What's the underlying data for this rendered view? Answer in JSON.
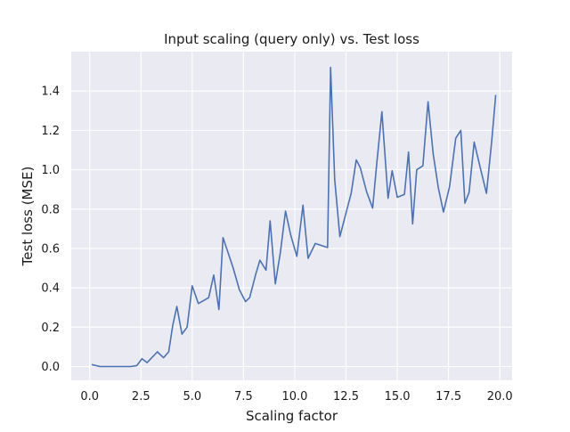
{
  "chart_data": {
    "type": "line",
    "title": "Input scaling (query only) vs. Test loss",
    "xlabel": "Scaling factor",
    "ylabel": "Test loss (MSE)",
    "xlim": [
      -0.9,
      20.6
    ],
    "ylim": [
      -0.07,
      1.6
    ],
    "xticks": [
      0.0,
      2.5,
      5.0,
      7.5,
      10.0,
      12.5,
      15.0,
      17.5,
      20.0
    ],
    "xtick_labels": [
      "0.0",
      "2.5",
      "5.0",
      "7.5",
      "10.0",
      "12.5",
      "15.0",
      "17.5",
      "20.0"
    ],
    "yticks": [
      0.0,
      0.2,
      0.4,
      0.6,
      0.8,
      1.0,
      1.2,
      1.4
    ],
    "ytick_labels": [
      "0.0",
      "0.2",
      "0.4",
      "0.6",
      "0.8",
      "1.0",
      "1.2",
      "1.4"
    ],
    "grid": true,
    "colors": {
      "background": "#eaeaf2",
      "grid": "#ffffff",
      "line": "#4c72b0"
    },
    "series": [
      {
        "x": [
          0.1,
          0.5,
          1.0,
          1.5,
          2.0,
          2.3,
          2.55,
          2.8,
          3.3,
          3.6,
          3.85,
          4.05,
          4.25,
          4.5,
          4.75,
          5.0,
          5.3,
          5.8,
          6.05,
          6.3,
          6.5,
          7.0,
          7.3,
          7.6,
          7.8,
          8.1,
          8.3,
          8.6,
          8.8,
          9.05,
          9.3,
          9.55,
          9.8,
          10.1,
          10.4,
          10.65,
          11.0,
          11.6,
          11.75,
          11.95,
          12.2,
          12.5,
          12.75,
          13.0,
          13.2,
          13.5,
          13.8,
          14.0,
          14.25,
          14.55,
          14.75,
          15.0,
          15.35,
          15.55,
          15.75,
          15.95,
          16.25,
          16.5,
          16.75,
          17.0,
          17.25,
          17.55,
          17.85,
          18.1,
          18.3,
          18.5,
          18.75,
          19.0,
          19.35,
          19.6,
          19.8
        ],
        "y": [
          0.01,
          0.0,
          0.0,
          0.0,
          0.0,
          0.005,
          0.04,
          0.02,
          0.075,
          0.045,
          0.075,
          0.21,
          0.305,
          0.165,
          0.2,
          0.41,
          0.32,
          0.35,
          0.465,
          0.29,
          0.655,
          0.5,
          0.39,
          0.33,
          0.35,
          0.47,
          0.54,
          0.49,
          0.74,
          0.42,
          0.58,
          0.79,
          0.67,
          0.56,
          0.82,
          0.55,
          0.625,
          0.605,
          1.52,
          0.95,
          0.66,
          0.78,
          0.88,
          1.05,
          1.01,
          0.89,
          0.805,
          1.03,
          1.295,
          0.855,
          0.995,
          0.86,
          0.875,
          1.09,
          0.725,
          1.0,
          1.02,
          1.345,
          1.08,
          0.91,
          0.785,
          0.915,
          1.16,
          1.2,
          0.83,
          0.885,
          1.14,
          1.03,
          0.88,
          1.14,
          1.38
        ]
      }
    ]
  }
}
